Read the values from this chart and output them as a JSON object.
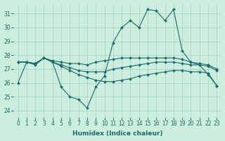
{
  "xlabel": "Humidex (Indice chaleur)",
  "bg_color": "#cceedd",
  "grid_color": "#aacccc",
  "line_color": "#1a6b6b",
  "xlim": [
    -0.5,
    23.5
  ],
  "ylim": [
    23.5,
    31.7
  ],
  "yticks": [
    24,
    25,
    26,
    27,
    28,
    29,
    30,
    31
  ],
  "xticks": [
    0,
    1,
    2,
    3,
    4,
    5,
    6,
    7,
    8,
    9,
    10,
    11,
    12,
    13,
    14,
    15,
    16,
    17,
    18,
    19,
    20,
    21,
    22,
    23
  ],
  "series_main": [
    26.0,
    27.5,
    27.3,
    27.8,
    27.5,
    25.7,
    25.0,
    24.8,
    24.2,
    25.7,
    26.5,
    28.9,
    30.0,
    30.5,
    30.0,
    31.3,
    31.2,
    30.5,
    31.3,
    28.3,
    27.5,
    27.3,
    26.6,
    25.8
  ],
  "series_line1": [
    27.5,
    27.5,
    27.4,
    27.8,
    27.6,
    27.5,
    27.4,
    27.4,
    27.3,
    27.5,
    27.6,
    27.7,
    27.8,
    27.8,
    27.8,
    27.8,
    27.8,
    27.8,
    27.8,
    27.7,
    27.5,
    27.4,
    27.3,
    27.0
  ],
  "series_line2": [
    27.5,
    27.5,
    27.4,
    27.8,
    27.5,
    27.3,
    27.1,
    26.9,
    26.8,
    26.8,
    26.8,
    27.0,
    27.1,
    27.2,
    27.3,
    27.4,
    27.5,
    27.5,
    27.5,
    27.4,
    27.3,
    27.3,
    27.2,
    26.9
  ],
  "series_line3": [
    27.5,
    27.5,
    27.4,
    27.8,
    27.5,
    27.2,
    26.9,
    26.6,
    26.4,
    26.2,
    26.1,
    26.1,
    26.2,
    26.3,
    26.5,
    26.6,
    26.7,
    26.8,
    26.9,
    26.9,
    26.8,
    26.8,
    26.7,
    25.8
  ]
}
